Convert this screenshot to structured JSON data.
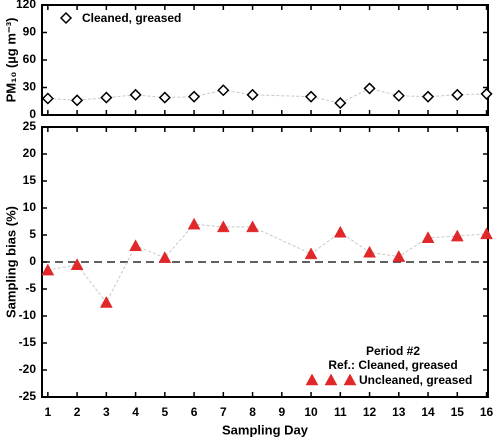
{
  "chart_data": [
    {
      "type": "scatter",
      "y_label": "PM₁₀ (µg m⁻³)",
      "legend": "upper left",
      "x": [
        1,
        2,
        3,
        4,
        5,
        6,
        7,
        8,
        10,
        11,
        12,
        13,
        14,
        15,
        16
      ],
      "series": [
        {
          "name": "Cleaned, greased",
          "color": "#000000",
          "marker": "diamond",
          "values": [
            18,
            16,
            19,
            22,
            19,
            20,
            27,
            22,
            20,
            13,
            29,
            21,
            20,
            22,
            23
          ]
        }
      ],
      "xlim": [
        0.8,
        16.05
      ],
      "xticks": [
        1,
        2,
        3,
        4,
        5,
        6,
        7,
        8,
        9,
        10,
        11,
        12,
        13,
        14,
        15,
        16
      ],
      "ylim": [
        0,
        120
      ],
      "yticks": [
        0,
        30,
        60,
        90,
        120
      ]
    },
    {
      "type": "scatter",
      "x_label": "Sampling Day",
      "y_label": "Sampling bias (%)",
      "legend": "lower right",
      "legend_title": "Period #2",
      "legend_subtitle": "Ref.: Cleaned, greased",
      "reference_line": 0,
      "x": [
        1,
        2,
        3,
        4,
        5,
        6,
        7,
        8,
        10,
        11,
        12,
        13,
        14,
        15,
        16
      ],
      "series": [
        {
          "name": "Uncleaned, greased",
          "color": "#e0282a",
          "marker": "triangle",
          "values": [
            -1.5,
            -0.5,
            -7.5,
            3,
            0.8,
            7,
            6.5,
            6.5,
            1.5,
            5.5,
            1.8,
            1,
            4.5,
            4.8,
            5.2
          ]
        }
      ],
      "xlim": [
        0.8,
        16.05
      ],
      "xticks": [
        1,
        2,
        3,
        4,
        5,
        6,
        7,
        8,
        9,
        10,
        11,
        12,
        13,
        14,
        15,
        16
      ],
      "ylim": [
        -25,
        25
      ],
      "yticks": [
        -25,
        -20,
        -15,
        -10,
        -5,
        0,
        5,
        10,
        15,
        20,
        25
      ]
    }
  ]
}
